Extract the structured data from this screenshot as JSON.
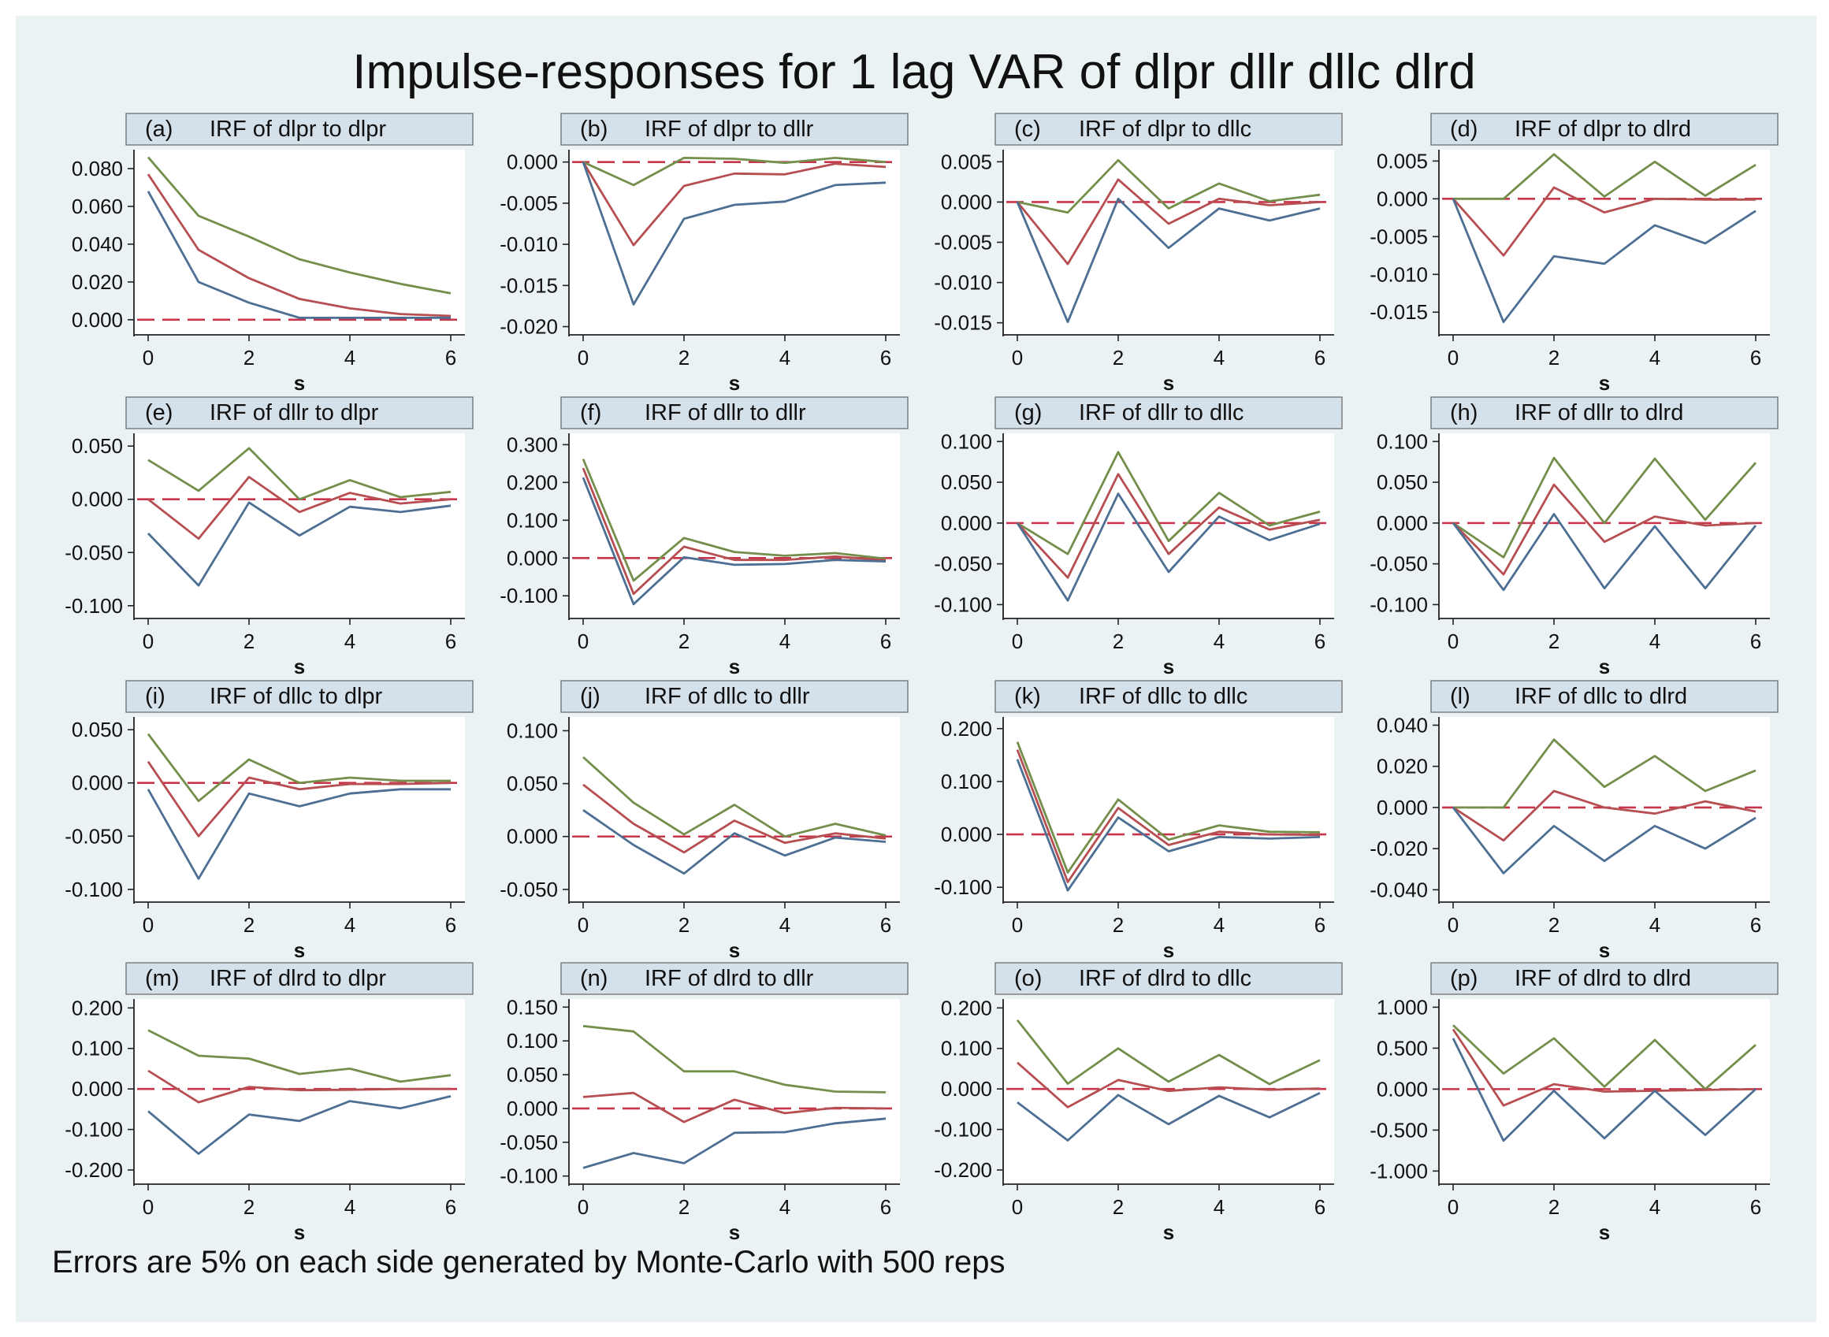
{
  "title": "Impulse-responses for 1 lag VAR of dlpr dllr dllc dlrd",
  "note": "Errors are 5% on each side generated by Monte-Carlo with 500 reps",
  "colors": {
    "background": "#ffffff",
    "panel_bg": "#eaf2f3",
    "header_bg": "#d5e1ea",
    "upper": "#738f4b",
    "irf": "#b64e52",
    "lower": "#4c6f93",
    "zero": "#c8344a",
    "axis": "#222222"
  },
  "chart_data": [
    {
      "id": "a",
      "label": "(a)",
      "title": "IRF of dlpr to dlpr",
      "type": "line",
      "xlabel": "s",
      "x": [
        0,
        1,
        2,
        3,
        4,
        5,
        6
      ],
      "xticks": [
        "0",
        "2",
        "4",
        "6"
      ],
      "yticks": [
        "0.080",
        "0.060",
        "0.040",
        "0.020",
        "0.000"
      ],
      "ylim": [
        -0.008,
        0.09
      ],
      "series": [
        {
          "name": "upper",
          "values": [
            0.086,
            0.055,
            0.044,
            0.032,
            0.025,
            0.019,
            0.014
          ]
        },
        {
          "name": "irf",
          "values": [
            0.077,
            0.037,
            0.022,
            0.011,
            0.006,
            0.003,
            0.002
          ]
        },
        {
          "name": "lower",
          "values": [
            0.068,
            0.02,
            0.009,
            0.001,
            0.001,
            0.001,
            0.001
          ]
        }
      ]
    },
    {
      "id": "b",
      "label": "(b)",
      "title": "IRF of dlpr to dllr",
      "type": "line",
      "xlabel": "s",
      "x": [
        0,
        1,
        2,
        3,
        4,
        5,
        6
      ],
      "xticks": [
        "0",
        "2",
        "4",
        "6"
      ],
      "yticks": [
        "0.000",
        "-0.005",
        "-0.010",
        "-0.015",
        "-0.020"
      ],
      "ylim": [
        -0.021,
        0.0015
      ],
      "series": [
        {
          "name": "upper",
          "values": [
            0.0,
            -0.0028,
            0.0005,
            0.0004,
            -0.0001,
            0.0005,
            0.0
          ]
        },
        {
          "name": "irf",
          "values": [
            0.0,
            -0.0101,
            -0.0029,
            -0.0014,
            -0.0015,
            -0.0002,
            -0.0006
          ]
        },
        {
          "name": "lower",
          "values": [
            0.0,
            -0.0173,
            -0.0069,
            -0.0052,
            -0.0048,
            -0.0028,
            -0.0025
          ]
        }
      ]
    },
    {
      "id": "c",
      "label": "(c)",
      "title": "IRF of dlpr to dllc",
      "type": "line",
      "xlabel": "s",
      "x": [
        0,
        1,
        2,
        3,
        4,
        5,
        6
      ],
      "xticks": [
        "0",
        "2",
        "4",
        "6"
      ],
      "yticks": [
        "0.005",
        "0.000",
        "-0.005",
        "-0.010",
        "-0.015"
      ],
      "ylim": [
        -0.0165,
        0.0065
      ],
      "series": [
        {
          "name": "upper",
          "values": [
            0.0,
            -0.0013,
            0.0052,
            -0.0008,
            0.0023,
            0.0001,
            0.0009
          ]
        },
        {
          "name": "irf",
          "values": [
            0.0,
            -0.0077,
            0.0028,
            -0.0027,
            0.0004,
            -0.0004,
            0.0
          ]
        },
        {
          "name": "lower",
          "values": [
            0.0,
            -0.0149,
            0.0004,
            -0.0057,
            -0.0008,
            -0.0023,
            -0.0008
          ]
        }
      ]
    },
    {
      "id": "d",
      "label": "(d)",
      "title": "IRF of dlpr to dlrd",
      "type": "line",
      "xlabel": "s",
      "x": [
        0,
        1,
        2,
        3,
        4,
        5,
        6
      ],
      "xticks": [
        "0",
        "2",
        "4",
        "6"
      ],
      "yticks": [
        "0.005",
        "0.000",
        "-0.005",
        "-0.010",
        "-0.015"
      ],
      "ylim": [
        -0.018,
        0.0065
      ],
      "series": [
        {
          "name": "upper",
          "values": [
            0.0,
            0.0,
            0.0059,
            0.0003,
            0.0049,
            0.0004,
            0.0045
          ]
        },
        {
          "name": "irf",
          "values": [
            0.0,
            -0.0075,
            0.0015,
            -0.0018,
            0.0,
            -0.0001,
            -0.0001
          ]
        },
        {
          "name": "lower",
          "values": [
            0.0,
            -0.0163,
            -0.0076,
            -0.0086,
            -0.0035,
            -0.0059,
            -0.0016
          ]
        }
      ]
    },
    {
      "id": "e",
      "label": "(e)",
      "title": "IRF of dllr to dlpr",
      "type": "line",
      "xlabel": "s",
      "x": [
        0,
        1,
        2,
        3,
        4,
        5,
        6
      ],
      "xticks": [
        "0",
        "2",
        "4",
        "6"
      ],
      "yticks": [
        "0.050",
        "0.000",
        "-0.050",
        "-0.100"
      ],
      "ylim": [
        -0.112,
        0.062
      ],
      "series": [
        {
          "name": "upper",
          "values": [
            0.037,
            0.008,
            0.048,
            0.0,
            0.018,
            0.002,
            0.007
          ]
        },
        {
          "name": "irf",
          "values": [
            0.0,
            -0.037,
            0.021,
            -0.012,
            0.006,
            -0.004,
            0.0
          ]
        },
        {
          "name": "lower",
          "values": [
            -0.032,
            -0.081,
            -0.003,
            -0.034,
            -0.007,
            -0.012,
            -0.006
          ]
        }
      ]
    },
    {
      "id": "f",
      "label": "(f)",
      "title": "IRF of dllr to dllr",
      "type": "line",
      "xlabel": "s",
      "x": [
        0,
        1,
        2,
        3,
        4,
        5,
        6
      ],
      "xticks": [
        "0",
        "2",
        "4",
        "6"
      ],
      "yticks": [
        "0.300",
        "0.200",
        "0.100",
        "0.000",
        "-0.100"
      ],
      "ylim": [
        -0.16,
        0.33
      ],
      "series": [
        {
          "name": "upper",
          "values": [
            0.262,
            -0.06,
            0.053,
            0.016,
            0.006,
            0.013,
            -0.002
          ]
        },
        {
          "name": "irf",
          "values": [
            0.238,
            -0.095,
            0.03,
            -0.005,
            -0.005,
            0.004,
            -0.006
          ]
        },
        {
          "name": "lower",
          "values": [
            0.213,
            -0.122,
            0.002,
            -0.018,
            -0.016,
            -0.005,
            -0.009
          ]
        }
      ]
    },
    {
      "id": "g",
      "label": "(g)",
      "title": "IRF of dllr to dllc",
      "type": "line",
      "xlabel": "s",
      "x": [
        0,
        1,
        2,
        3,
        4,
        5,
        6
      ],
      "xticks": [
        "0",
        "2",
        "4",
        "6"
      ],
      "yticks": [
        "0.100",
        "0.050",
        "0.000",
        "-0.050",
        "-0.100"
      ],
      "ylim": [
        -0.117,
        0.11
      ],
      "series": [
        {
          "name": "upper",
          "values": [
            0.0,
            -0.038,
            0.087,
            -0.022,
            0.037,
            -0.003,
            0.014
          ]
        },
        {
          "name": "irf",
          "values": [
            0.0,
            -0.067,
            0.06,
            -0.038,
            0.019,
            -0.008,
            0.004
          ]
        },
        {
          "name": "lower",
          "values": [
            0.0,
            -0.095,
            0.036,
            -0.06,
            0.008,
            -0.021,
            -0.001
          ]
        }
      ]
    },
    {
      "id": "h",
      "label": "(h)",
      "title": "IRF of dllr to dlrd",
      "type": "line",
      "xlabel": "s",
      "x": [
        0,
        1,
        2,
        3,
        4,
        5,
        6
      ],
      "xticks": [
        "0",
        "2",
        "4",
        "6"
      ],
      "yticks": [
        "0.100",
        "0.050",
        "0.000",
        "-0.050",
        "-0.100"
      ],
      "ylim": [
        -0.117,
        0.11
      ],
      "series": [
        {
          "name": "upper",
          "values": [
            0.0,
            -0.042,
            0.08,
            0.0,
            0.079,
            0.004,
            0.074
          ]
        },
        {
          "name": "irf",
          "values": [
            0.0,
            -0.063,
            0.047,
            -0.023,
            0.008,
            -0.003,
            0.0
          ]
        },
        {
          "name": "lower",
          "values": [
            0.0,
            -0.082,
            0.011,
            -0.08,
            -0.004,
            -0.08,
            -0.003
          ]
        }
      ]
    },
    {
      "id": "i",
      "label": "(i)",
      "title": "IRF of dllc to dlpr",
      "type": "line",
      "xlabel": "s",
      "x": [
        0,
        1,
        2,
        3,
        4,
        5,
        6
      ],
      "xticks": [
        "0",
        "2",
        "4",
        "6"
      ],
      "yticks": [
        "0.050",
        "0.000",
        "-0.050",
        "-0.100"
      ],
      "ylim": [
        -0.112,
        0.062
      ],
      "series": [
        {
          "name": "upper",
          "values": [
            0.046,
            -0.017,
            0.022,
            0.0,
            0.005,
            0.002,
            0.002
          ]
        },
        {
          "name": "irf",
          "values": [
            0.02,
            -0.05,
            0.005,
            -0.006,
            -0.001,
            -0.001,
            0.0
          ]
        },
        {
          "name": "lower",
          "values": [
            -0.006,
            -0.09,
            -0.01,
            -0.022,
            -0.01,
            -0.006,
            -0.006
          ]
        }
      ]
    },
    {
      "id": "j",
      "label": "(j)",
      "title": "IRF of dllc to dllr",
      "type": "line",
      "xlabel": "s",
      "x": [
        0,
        1,
        2,
        3,
        4,
        5,
        6
      ],
      "xticks": [
        "0",
        "2",
        "4",
        "6"
      ],
      "yticks": [
        "0.100",
        "0.050",
        "0.000",
        "-0.050"
      ],
      "ylim": [
        -0.062,
        0.113
      ],
      "series": [
        {
          "name": "upper",
          "values": [
            0.075,
            0.032,
            0.002,
            0.03,
            0.0,
            0.012,
            0.001
          ]
        },
        {
          "name": "irf",
          "values": [
            0.049,
            0.012,
            -0.015,
            0.015,
            -0.006,
            0.003,
            -0.002
          ]
        },
        {
          "name": "lower",
          "values": [
            0.025,
            -0.008,
            -0.035,
            0.003,
            -0.018,
            -0.001,
            -0.005
          ]
        }
      ]
    },
    {
      "id": "k",
      "label": "(k)",
      "title": "IRF of dllc to dllc",
      "type": "line",
      "xlabel": "s",
      "x": [
        0,
        1,
        2,
        3,
        4,
        5,
        6
      ],
      "xticks": [
        "0",
        "2",
        "4",
        "6"
      ],
      "yticks": [
        "0.200",
        "0.100",
        "0.000",
        "-0.100"
      ],
      "ylim": [
        -0.128,
        0.222
      ],
      "series": [
        {
          "name": "upper",
          "values": [
            0.175,
            -0.072,
            0.066,
            -0.01,
            0.017,
            0.005,
            0.004
          ]
        },
        {
          "name": "irf",
          "values": [
            0.16,
            -0.09,
            0.05,
            -0.02,
            0.005,
            0.0,
            -0.001
          ]
        },
        {
          "name": "lower",
          "values": [
            0.142,
            -0.106,
            0.032,
            -0.032,
            -0.005,
            -0.008,
            -0.005
          ]
        }
      ]
    },
    {
      "id": "l",
      "label": "(l)",
      "title": "IRF of dllc to dlrd",
      "type": "line",
      "xlabel": "s",
      "x": [
        0,
        1,
        2,
        3,
        4,
        5,
        6
      ],
      "xticks": [
        "0",
        "2",
        "4",
        "6"
      ],
      "yticks": [
        "0.040",
        "0.020",
        "0.000",
        "-0.020",
        "-0.040"
      ],
      "ylim": [
        -0.046,
        0.044
      ],
      "series": [
        {
          "name": "upper",
          "values": [
            0.0,
            0.0,
            0.033,
            0.01,
            0.025,
            0.008,
            0.018
          ]
        },
        {
          "name": "irf",
          "values": [
            0.0,
            -0.016,
            0.008,
            0.0,
            -0.003,
            0.003,
            -0.002
          ]
        },
        {
          "name": "lower",
          "values": [
            0.0,
            -0.032,
            -0.009,
            -0.026,
            -0.009,
            -0.02,
            -0.005
          ]
        }
      ]
    },
    {
      "id": "m",
      "label": "(m)",
      "title": "IRF of dlrd to dlpr",
      "type": "line",
      "xlabel": "s",
      "x": [
        0,
        1,
        2,
        3,
        4,
        5,
        6
      ],
      "xticks": [
        "0",
        "2",
        "4",
        "6"
      ],
      "yticks": [
        "0.200",
        "0.100",
        "0.000",
        "-0.100",
        "-0.200"
      ],
      "ylim": [
        -0.235,
        0.222
      ],
      "series": [
        {
          "name": "upper",
          "values": [
            0.145,
            0.082,
            0.075,
            0.037,
            0.05,
            0.018,
            0.034
          ]
        },
        {
          "name": "irf",
          "values": [
            0.045,
            -0.033,
            0.005,
            -0.003,
            -0.002,
            0.0,
            0.0
          ]
        },
        {
          "name": "lower",
          "values": [
            -0.055,
            -0.16,
            -0.063,
            -0.079,
            -0.03,
            -0.048,
            -0.018
          ]
        }
      ]
    },
    {
      "id": "n",
      "label": "(n)",
      "title": "IRF of dlrd to dllr",
      "type": "line",
      "xlabel": "s",
      "x": [
        0,
        1,
        2,
        3,
        4,
        5,
        6
      ],
      "xticks": [
        "0",
        "2",
        "4",
        "6"
      ],
      "yticks": [
        "0.150",
        "0.100",
        "0.050",
        "0.000",
        "-0.050",
        "-0.100"
      ],
      "ylim": [
        -0.112,
        0.162
      ],
      "series": [
        {
          "name": "upper",
          "values": [
            0.122,
            0.114,
            0.055,
            0.055,
            0.035,
            0.025,
            0.024
          ]
        },
        {
          "name": "irf",
          "values": [
            0.017,
            0.023,
            -0.02,
            0.013,
            -0.007,
            0.001,
            0.0
          ]
        },
        {
          "name": "lower",
          "values": [
            -0.088,
            -0.066,
            -0.081,
            -0.036,
            -0.035,
            -0.022,
            -0.015
          ]
        }
      ]
    },
    {
      "id": "o",
      "label": "(o)",
      "title": "IRF of dlrd to dllc",
      "type": "line",
      "xlabel": "s",
      "x": [
        0,
        1,
        2,
        3,
        4,
        5,
        6
      ],
      "xticks": [
        "0",
        "2",
        "4",
        "6"
      ],
      "yticks": [
        "0.200",
        "0.100",
        "0.000",
        "-0.100",
        "-0.200"
      ],
      "ylim": [
        -0.235,
        0.222
      ],
      "series": [
        {
          "name": "upper",
          "values": [
            0.17,
            0.013,
            0.1,
            0.018,
            0.084,
            0.012,
            0.071
          ]
        },
        {
          "name": "irf",
          "values": [
            0.065,
            -0.045,
            0.022,
            -0.005,
            0.004,
            -0.002,
            0.001
          ]
        },
        {
          "name": "lower",
          "values": [
            -0.033,
            -0.127,
            -0.015,
            -0.087,
            -0.017,
            -0.07,
            -0.01
          ]
        }
      ]
    },
    {
      "id": "p",
      "label": "(p)",
      "title": "IRF of dlrd to dlrd",
      "type": "line",
      "xlabel": "s",
      "x": [
        0,
        1,
        2,
        3,
        4,
        5,
        6
      ],
      "xticks": [
        "0",
        "2",
        "4",
        "6"
      ],
      "yticks": [
        "1.000",
        "0.500",
        "0.000",
        "-0.500",
        "-1.000"
      ],
      "ylim": [
        -1.16,
        1.1
      ],
      "series": [
        {
          "name": "upper",
          "values": [
            0.78,
            0.19,
            0.62,
            0.03,
            0.6,
            0.0,
            0.54
          ]
        },
        {
          "name": "irf",
          "values": [
            0.73,
            -0.2,
            0.06,
            -0.03,
            -0.02,
            -0.01,
            0.0
          ]
        },
        {
          "name": "lower",
          "values": [
            0.62,
            -0.63,
            -0.02,
            -0.6,
            -0.02,
            -0.56,
            0.0
          ]
        }
      ]
    }
  ]
}
